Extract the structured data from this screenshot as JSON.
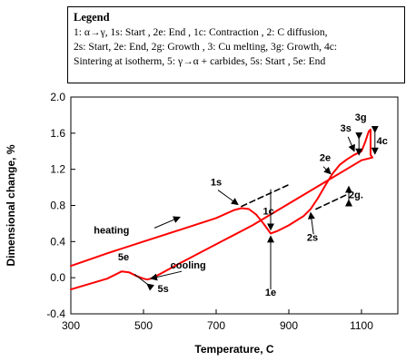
{
  "chart_data": {
    "type": "line",
    "title": "",
    "xlabel": "Temperature, C",
    "ylabel": "Dimensional change, %",
    "xlim": [
      300,
      1200
    ],
    "ylim": [
      -0.4,
      2.0
    ],
    "xticks": [
      300,
      500,
      700,
      900,
      1100
    ],
    "yticks": [
      -0.4,
      0.0,
      0.4,
      0.8,
      1.2,
      1.6,
      2.0
    ],
    "xtick_labels": [
      "300",
      "500",
      "700",
      "900",
      "1100"
    ],
    "ytick_labels": [
      "-0.4",
      "0.0",
      "0.4",
      "0.8",
      "1.2",
      "1.6",
      "2.0"
    ],
    "grid": false,
    "series": [
      {
        "style": "solid",
        "color": "#ff0000",
        "x": [
          300,
          400,
          500,
          600,
          700,
          750,
          770,
          790,
          810,
          830,
          850,
          870,
          900,
          940,
          960,
          980,
          1000,
          1020,
          1040,
          1060,
          1080,
          1100,
          1110,
          1120,
          1125,
          1125,
          1130,
          1100,
          1000,
          900,
          800,
          700,
          600,
          540,
          520,
          510,
          500,
          480,
          460,
          440,
          400,
          300
        ],
        "y": [
          0.13,
          0.27,
          0.4,
          0.53,
          0.66,
          0.75,
          0.77,
          0.76,
          0.7,
          0.6,
          0.49,
          0.52,
          0.58,
          0.68,
          0.76,
          0.88,
          1.02,
          1.15,
          1.25,
          1.31,
          1.36,
          1.4,
          1.5,
          1.62,
          1.64,
          1.36,
          1.33,
          1.3,
          1.06,
          0.82,
          0.58,
          0.37,
          0.16,
          0.03,
          -0.01,
          -0.02,
          -0.01,
          0.02,
          0.06,
          0.07,
          -0.01,
          -0.13
        ]
      },
      {
        "style": "dashed",
        "color": "#000000",
        "x": [
          770,
          900
        ],
        "y": [
          0.79,
          1.03
        ]
      },
      {
        "style": "dashed",
        "color": "#000000",
        "x": [
          975,
          1060
        ],
        "y": [
          0.76,
          0.92
        ]
      }
    ],
    "annotations": [
      {
        "text": "1s",
        "x": 700,
        "y": 1.02
      },
      {
        "text": "1c",
        "x": 844,
        "y": 0.7
      },
      {
        "text": "1e",
        "x": 850,
        "y": -0.2
      },
      {
        "text": "heating",
        "x": 412,
        "y": 0.49
      },
      {
        "text": "cooling",
        "x": 623,
        "y": 0.1
      },
      {
        "text": "5e",
        "x": 445,
        "y": 0.19
      },
      {
        "text": "5s",
        "x": 554,
        "y": -0.16
      },
      {
        "text": "2e",
        "x": 1000,
        "y": 1.29
      },
      {
        "text": "2s",
        "x": 965,
        "y": 0.41
      },
      {
        "text": "2g.",
        "x": 1085,
        "y": 0.88
      },
      {
        "text": "3s",
        "x": 1057,
        "y": 1.62
      },
      {
        "text": "3g",
        "x": 1098,
        "y": 1.74
      },
      {
        "text": "4c",
        "x": 1157,
        "y": 1.48
      }
    ]
  },
  "legend": {
    "title": "Legend",
    "lines": [
      "1: α→γ, 1s: Start , 2e:  End , 1c: Contraction , 2: C diffusion,",
      "2s: Start, 2e: End, 2g: Growth , 3: Cu melting, 3g: Growth, 4c:",
      "Sintering at isotherm, 5: γ→α + carbides, 5s: Start , 5e: End"
    ]
  },
  "colors": {
    "curve": "#ff0000",
    "axis": "#000000"
  }
}
